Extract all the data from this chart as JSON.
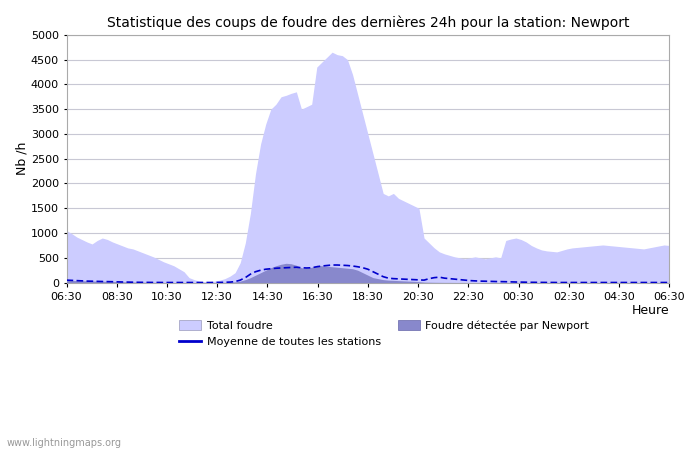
{
  "title": "Statistique des coups de foudre des dernières 24h pour la station: Newport",
  "xlabel": "Heure",
  "ylabel": "Nb /h",
  "ylim": [
    0,
    5000
  ],
  "yticks": [
    0,
    500,
    1000,
    1500,
    2000,
    2500,
    3000,
    3500,
    4000,
    4500,
    5000
  ],
  "xtick_labels": [
    "06:30",
    "08:30",
    "10:30",
    "12:30",
    "14:30",
    "16:30",
    "18:30",
    "20:30",
    "22:30",
    "00:30",
    "02:30",
    "04:30",
    "06:30"
  ],
  "background_color": "#ffffff",
  "plot_bg_color": "#ffffff",
  "grid_color": "#c8c8d4",
  "total_foudre_color": "#ccccff",
  "newport_color": "#8888cc",
  "moyenne_color": "#0000cc",
  "watermark": "www.lightningmaps.org",
  "total_foudre": [
    1050,
    990,
    920,
    870,
    820,
    780,
    850,
    900,
    870,
    820,
    780,
    740,
    700,
    680,
    640,
    600,
    560,
    520,
    470,
    420,
    380,
    340,
    280,
    220,
    100,
    60,
    30,
    20,
    20,
    30,
    50,
    80,
    130,
    200,
    400,
    800,
    1400,
    2200,
    2800,
    3200,
    3500,
    3600,
    3750,
    3780,
    3820,
    3850,
    3500,
    3550,
    3600,
    4350,
    4450,
    4550,
    4650,
    4600,
    4580,
    4500,
    4200,
    3800,
    3400,
    3000,
    2600,
    2200,
    1800,
    1750,
    1800,
    1700,
    1650,
    1600,
    1550,
    1500,
    900,
    800,
    700,
    620,
    580,
    550,
    520,
    500,
    480,
    500,
    520,
    500,
    480,
    500,
    520,
    500,
    850,
    880,
    900,
    870,
    820,
    750,
    700,
    660,
    640,
    630,
    620,
    650,
    680,
    700,
    710,
    720,
    730,
    740,
    750,
    760,
    750,
    740,
    730,
    720,
    710,
    700,
    690,
    680,
    700,
    720,
    740,
    760,
    750
  ],
  "newport_detected": [
    50,
    45,
    40,
    38,
    35,
    32,
    30,
    28,
    25,
    22,
    20,
    18,
    15,
    12,
    10,
    8,
    6,
    5,
    4,
    3,
    3,
    2,
    2,
    2,
    2,
    2,
    2,
    2,
    2,
    2,
    3,
    5,
    8,
    15,
    30,
    60,
    100,
    150,
    200,
    250,
    300,
    340,
    370,
    390,
    380,
    350,
    300,
    290,
    310,
    350,
    340,
    330,
    320,
    310,
    300,
    290,
    280,
    250,
    200,
    150,
    100,
    80,
    60,
    50,
    45,
    40,
    35,
    30,
    25,
    20,
    10,
    8,
    6,
    5,
    4,
    4,
    3,
    3,
    3,
    3,
    3,
    3,
    3,
    3,
    3,
    3,
    3,
    3,
    3,
    3,
    3,
    3,
    3,
    3,
    3,
    3,
    3,
    3,
    3,
    3,
    3,
    3,
    3,
    3,
    3,
    3,
    3,
    3,
    3,
    3,
    3,
    3,
    3,
    3,
    3,
    3,
    3,
    3,
    3
  ],
  "moyenne": [
    50,
    45,
    40,
    35,
    30,
    28,
    25,
    22,
    20,
    18,
    15,
    12,
    10,
    8,
    6,
    5,
    4,
    3,
    3,
    2,
    2,
    2,
    2,
    2,
    2,
    2,
    2,
    2,
    2,
    3,
    4,
    6,
    10,
    20,
    50,
    100,
    170,
    220,
    250,
    270,
    280,
    290,
    295,
    300,
    305,
    310,
    300,
    295,
    300,
    320,
    335,
    345,
    355,
    355,
    350,
    345,
    335,
    320,
    300,
    270,
    220,
    170,
    120,
    90,
    80,
    75,
    70,
    65,
    60,
    55,
    50,
    80,
    100,
    110,
    90,
    80,
    70,
    60,
    50,
    40,
    35,
    30,
    28,
    25,
    22,
    20,
    18,
    15,
    12,
    10,
    8,
    6,
    5,
    4,
    3,
    3,
    2,
    2,
    2,
    2,
    2,
    2,
    2,
    2,
    2,
    2,
    2,
    2,
    2,
    2,
    2,
    2,
    2,
    2,
    2,
    2,
    2,
    2,
    2
  ],
  "n_ticks": 13
}
